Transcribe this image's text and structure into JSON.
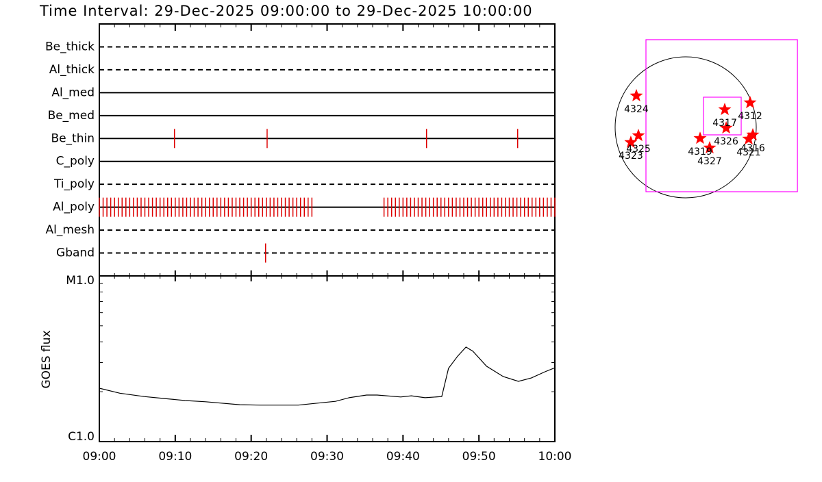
{
  "chart_data": [
    {
      "type": "timeline",
      "title": "Time Interval: 29-Dec-2025 09:00:00 to 29-Dec-2025 10:00:00",
      "categories": [
        "Be_thick",
        "Al_thick",
        "Al_med",
        "Be_med",
        "Be_thin",
        "C_poly",
        "Ti_poly",
        "Al_poly",
        "Al_mesh",
        "Gband"
      ],
      "styles": [
        "dashed",
        "dashed",
        "solid",
        "solid",
        "solid",
        "solid",
        "dashed",
        "solid",
        "dashed",
        "dashed"
      ],
      "events": [
        [],
        [],
        [],
        [],
        [
          9.9,
          22.1,
          43.1,
          55.1
        ],
        [],
        [],
        [
          0,
          0.5,
          1,
          1.5,
          2,
          2.5,
          3,
          3.5,
          4,
          4.5,
          5,
          5.5,
          6,
          6.5,
          7,
          7.5,
          8,
          8.5,
          9,
          9.5,
          10,
          10.5,
          11,
          11.5,
          12,
          12.5,
          13,
          13.5,
          14,
          14.5,
          15,
          15.5,
          16,
          16.5,
          17,
          17.5,
          18,
          18.5,
          19,
          19.5,
          20,
          20.5,
          21,
          21.5,
          22,
          22.5,
          23,
          23.5,
          24,
          24.5,
          25,
          25.5,
          26,
          26.5,
          27,
          27.5,
          28,
          37.5,
          38,
          38.5,
          39,
          39.5,
          40,
          40.5,
          41,
          41.5,
          42,
          42.5,
          43,
          43.5,
          44,
          44.5,
          45,
          45.5,
          46,
          46.5,
          47,
          47.5,
          48,
          48.5,
          49,
          49.5,
          50,
          50.5,
          51,
          51.5,
          52,
          52.5,
          53,
          53.5,
          54,
          54.5,
          55,
          55.5,
          56,
          56.5,
          57,
          57.5,
          58,
          58.5,
          59,
          59.5,
          60
        ],
        [],
        [
          21.9
        ]
      ],
      "color": "#dd0000",
      "xlim": [
        0,
        60
      ]
    },
    {
      "type": "line",
      "ylabel": "GOES flux",
      "x": [
        0,
        2.7,
        5.9,
        8.6,
        11.3,
        14.0,
        18.5,
        21.2,
        26.2,
        28.4,
        31.1,
        32.9,
        35.2,
        36.6,
        39.7,
        41.1,
        42.9,
        45.1,
        46.0,
        47.2,
        48.3,
        49.2,
        51.0,
        53.2,
        55.2,
        56.9,
        58.7,
        60
      ],
      "values": [
        2.1e-06,
        1.96e-06,
        1.87e-06,
        1.82e-06,
        1.77e-06,
        1.74e-06,
        1.67e-06,
        1.66e-06,
        1.66e-06,
        1.7e-06,
        1.75e-06,
        1.84e-06,
        1.91e-06,
        1.91e-06,
        1.86e-06,
        1.89e-06,
        1.84e-06,
        1.87e-06,
        2.77e-06,
        3.28e-06,
        3.72e-06,
        3.51e-06,
        2.85e-06,
        2.47e-06,
        2.31e-06,
        2.42e-06,
        2.64e-06,
        2.79e-06
      ],
      "color": "#000000",
      "log_y": true,
      "xlim": [
        0,
        60
      ],
      "xticks": [
        {
          "value": 0,
          "label": "09:00"
        },
        {
          "value": 10,
          "label": "09:10"
        },
        {
          "value": 20,
          "label": "09:20"
        },
        {
          "value": 30,
          "label": "09:30"
        },
        {
          "value": 40,
          "label": "09:40"
        },
        {
          "value": 50,
          "label": "09:50"
        },
        {
          "value": 60,
          "label": "10:00"
        }
      ],
      "xminor": [
        2,
        4,
        6,
        8,
        12,
        14,
        16,
        18,
        22,
        24,
        26,
        28,
        32,
        34,
        36,
        38,
        42,
        44,
        46,
        48,
        52,
        54,
        56,
        58
      ],
      "ylim": [
        1e-06,
        1e-05
      ],
      "yticks": [
        {
          "value": 1e-06,
          "label": "C1.0"
        },
        {
          "value": 1e-05,
          "label": "M1.0"
        }
      ],
      "yminor": [
        2e-06,
        3e-06,
        4e-06,
        5e-06,
        6e-06,
        7e-06,
        8e-06,
        9e-06
      ]
    },
    {
      "type": "scatter",
      "labels": [
        "4324",
        "4312",
        "4317",
        "4326",
        "4319",
        "4327",
        "4316",
        "4321",
        "4325",
        "4323"
      ],
      "x": [
        -682,
        890,
        540,
        559,
        199,
        331,
        928,
        871,
        -653,
        -758
      ],
      "y": [
        436,
        341,
        246,
        -9,
        -152,
        -284,
        -104,
        -161,
        -114,
        -208
      ],
      "color": "#ff0000",
      "disk_radius": 975,
      "boxes": [
        {
          "x": [
            -549,
            1544
          ],
          "y": [
            -890,
            1212
          ]
        },
        {
          "x": [
            246,
            767
          ],
          "y": [
            -104,
            417
          ]
        }
      ],
      "box_color": "#ff00ff"
    }
  ]
}
